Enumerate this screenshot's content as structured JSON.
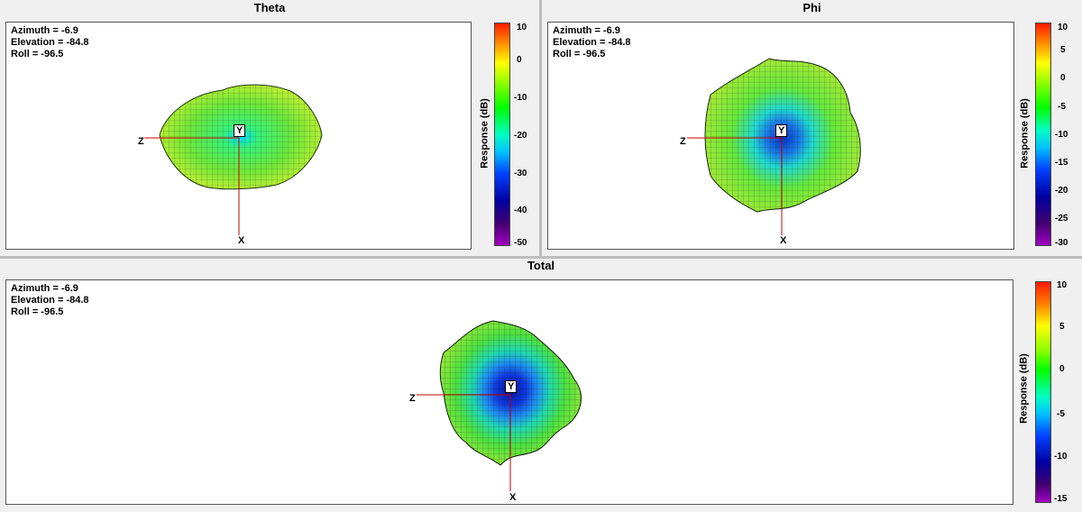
{
  "panels": {
    "theta": {
      "title": "Theta",
      "azimuth": "Azimuth = -6.9",
      "elevation": "Elevation = -84.8",
      "roll": "Roll = -96.5",
      "colorbar_title": "Response (dB)",
      "ticks": [
        "10",
        "0",
        "-10",
        "-20",
        "-30",
        "-40",
        "-50"
      ]
    },
    "phi": {
      "title": "Phi",
      "azimuth": "Azimuth = -6.9",
      "elevation": "Elevation = -84.8",
      "roll": "Roll = -96.5",
      "colorbar_title": "Response (dB)",
      "ticks": [
        "10",
        "5",
        "0",
        "-5",
        "-10",
        "-15",
        "-20",
        "-25",
        "-30"
      ]
    },
    "total": {
      "title": "Total",
      "azimuth": "Azimuth = -6.9",
      "elevation": "Elevation = -84.8",
      "roll": "Roll = -96.5",
      "colorbar_title": "Response (dB)",
      "ticks": [
        "10",
        "5",
        "0",
        "-5",
        "-10",
        "-15"
      ]
    }
  },
  "axes": {
    "z": "Z",
    "y": "Y",
    "x": "X"
  },
  "colors": {
    "colormap": [
      "#ff1a00",
      "#ff8000",
      "#ffff00",
      "#80ff00",
      "#00ff00",
      "#00ffc0",
      "#00c0ff",
      "#0040ff",
      "#0000a0",
      "#600080",
      "#a000c0"
    ],
    "surface_green": "#6fe63a",
    "surface_yellow": "#d8ef2c",
    "surface_blue": "#1f4fe0",
    "axis_red": "#cc0000"
  }
}
